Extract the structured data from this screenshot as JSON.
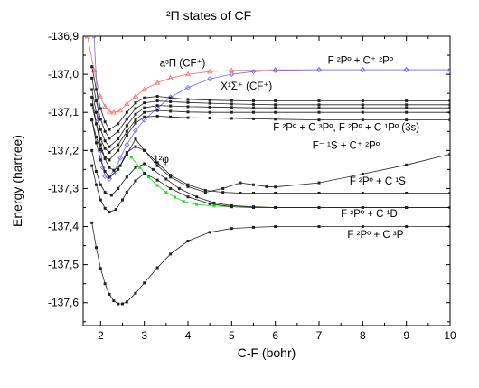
{
  "chart_data": {
    "type": "line",
    "title": "²Π states of CF",
    "xlabel": "C-F (bohr)",
    "ylabel": "Energy (hartree)",
    "xlim": [
      1.6,
      10
    ],
    "ylim": [
      -137.66,
      -136.9
    ],
    "x_ticks": [
      2,
      3,
      4,
      5,
      6,
      7,
      8,
      9,
      10
    ],
    "x_tick_labels": [
      "2",
      "3",
      "4",
      "5",
      "6",
      "7",
      "8",
      "9",
      "10"
    ],
    "y_ticks": [
      -136.9,
      -137.0,
      -137.1,
      -137.2,
      -137.3,
      -137.4,
      -137.5,
      -137.6
    ],
    "y_tick_labels": [
      "-136,9",
      "-137,0",
      "-137,1",
      "-137,2",
      "-137,3",
      "-137,4",
      "-137,5",
      "-137,6"
    ],
    "grid": false,
    "annotations": [
      {
        "text": "F ²Pº + C⁺ ²Pº",
        "x": 7.2,
        "y": -136.972
      },
      {
        "text": "a³Π (CF⁺)",
        "x": 3.35,
        "y": -136.98
      },
      {
        "text": "X¹Σ⁺ (CF⁺)",
        "x": 4.75,
        "y": -137.04
      },
      {
        "text": "F ²Pº + C ³Pº, F ²Pº + C ¹Pº (3s)",
        "x": 5.95,
        "y": -137.148
      },
      {
        "text": "F⁻ ¹S + C⁺ ²Pº",
        "x": 6.85,
        "y": -137.196
      },
      {
        "text": "1²φ",
        "x": 3.2,
        "y": -137.232
      },
      {
        "text": "F ²Pº + C ¹S",
        "x": 7.7,
        "y": -137.29
      },
      {
        "text": "F ²Pº + C ¹D",
        "x": 7.5,
        "y": -137.375
      },
      {
        "text": "F ²Pº + C ³P",
        "x": 7.65,
        "y": -137.43
      }
    ],
    "series": [
      {
        "color": "#ff6a6a",
        "marker": "triangle",
        "x": [
          1.7,
          1.85,
          2.0,
          2.1,
          2.2,
          2.3,
          2.45,
          2.6,
          2.8,
          3.0,
          3.3,
          3.6,
          4.0,
          4.5,
          5.0,
          6.0,
          7.0,
          8.0,
          9.0,
          10.0
        ],
        "y": [
          -136.9,
          -136.99,
          -137.06,
          -137.085,
          -137.098,
          -137.1,
          -137.095,
          -137.078,
          -137.058,
          -137.04,
          -137.022,
          -137.01,
          -137.0,
          -136.993,
          -136.99,
          -136.988,
          -136.988,
          -136.988,
          -136.988,
          -136.988
        ]
      },
      {
        "color": "#6a6aff",
        "marker": "diamond",
        "x": [
          1.85,
          1.95,
          2.0,
          2.05,
          2.1,
          2.2,
          2.3,
          2.45,
          2.6,
          2.8,
          3.0,
          3.3,
          3.6,
          4.0,
          4.5,
          5.0,
          5.5,
          6.0,
          7.0,
          8.0,
          9.0,
          10.0
        ],
        "y": [
          -136.9,
          -137.12,
          -137.2,
          -137.245,
          -137.268,
          -137.275,
          -137.26,
          -137.22,
          -137.185,
          -137.148,
          -137.12,
          -137.088,
          -137.06,
          -137.035,
          -137.012,
          -137.0,
          -136.993,
          -136.99,
          -136.988,
          -136.988,
          -136.988,
          -136.988
        ]
      },
      {
        "color": "#22dd22",
        "marker": "square",
        "x": [
          2.7,
          2.9,
          3.1,
          3.3,
          3.5,
          3.7,
          3.9,
          4.2,
          4.6,
          5.0,
          5.5,
          6.0,
          7.0,
          8.0,
          9.0,
          10.0
        ],
        "y": [
          -137.218,
          -137.245,
          -137.27,
          -137.292,
          -137.31,
          -137.323,
          -137.334,
          -137.342,
          -137.346,
          -137.348,
          -137.349,
          -137.35,
          -137.35,
          -137.35,
          -137.35,
          -137.35
        ]
      },
      {
        "color": "#222222",
        "marker": "square",
        "x": [
          1.8,
          1.9,
          2.0,
          2.1,
          2.2,
          2.3,
          2.4,
          2.5,
          2.6,
          2.8,
          3.0,
          3.3,
          3.6,
          4.0,
          4.5,
          5.0,
          5.5,
          6.0,
          7.0,
          8.0,
          9.0,
          10.0
        ],
        "y": [
          -137.39,
          -137.455,
          -137.51,
          -137.55,
          -137.578,
          -137.595,
          -137.603,
          -137.603,
          -137.598,
          -137.575,
          -137.548,
          -137.508,
          -137.472,
          -137.438,
          -137.415,
          -137.405,
          -137.402,
          -137.4,
          -137.4,
          -137.4,
          -137.4,
          -137.4
        ]
      },
      {
        "color": "#222222",
        "marker": "square",
        "x": [
          1.8,
          1.9,
          2.0,
          2.1,
          2.2,
          2.35,
          2.5,
          2.6,
          2.8,
          3.0,
          3.3,
          3.6,
          4.0,
          4.5,
          5.0,
          5.5,
          6.0,
          7.0,
          8.0,
          9.0,
          10.0
        ],
        "y": [
          -137.24,
          -137.29,
          -137.33,
          -137.352,
          -137.362,
          -137.355,
          -137.33,
          -137.31,
          -137.28,
          -137.26,
          -137.278,
          -137.3,
          -137.322,
          -137.34,
          -137.348,
          -137.35,
          -137.35,
          -137.35,
          -137.35,
          -137.35,
          -137.35
        ]
      },
      {
        "color": "#222222",
        "marker": "square",
        "x": [
          1.8,
          1.9,
          2.0,
          2.1,
          2.25,
          2.4,
          2.6,
          2.8,
          3.0,
          3.2,
          3.5,
          3.8,
          4.2,
          4.6,
          5.0,
          5.5,
          6.0,
          7.0,
          8.0,
          9.0,
          10.0
        ],
        "y": [
          -137.2,
          -137.255,
          -137.29,
          -137.31,
          -137.318,
          -137.3,
          -137.27,
          -137.245,
          -137.235,
          -137.25,
          -137.275,
          -137.3,
          -137.322,
          -137.338,
          -137.345,
          -137.348,
          -137.35,
          -137.35,
          -137.35,
          -137.35,
          -137.35
        ]
      },
      {
        "color": "#222222",
        "marker": "square",
        "x": [
          1.8,
          1.9,
          2.0,
          2.1,
          2.2,
          2.4,
          2.6,
          2.8,
          3.0,
          3.3,
          3.6,
          4.0,
          4.4,
          4.8,
          5.2,
          5.5,
          6.0,
          7.0,
          8.0,
          9.0,
          10.0
        ],
        "y": [
          -137.12,
          -137.18,
          -137.225,
          -137.255,
          -137.27,
          -137.25,
          -137.205,
          -137.19,
          -137.2,
          -137.232,
          -137.265,
          -137.29,
          -137.305,
          -137.31,
          -137.312,
          -137.312,
          -137.312,
          -137.312,
          -137.312,
          -137.312,
          -137.312
        ]
      },
      {
        "color": "#222222",
        "marker": "square",
        "x": [
          1.8,
          1.9,
          2.0,
          2.1,
          2.2,
          2.3,
          2.45,
          2.6,
          2.8,
          3.0,
          3.3,
          3.6,
          4.0,
          4.4,
          4.8,
          5.2,
          5.5,
          5.8,
          6.0,
          7.0,
          8.0,
          9.0,
          10.0
        ],
        "y": [
          -137.06,
          -137.13,
          -137.185,
          -137.222,
          -137.245,
          -137.252,
          -137.24,
          -137.21,
          -137.17,
          -137.2,
          -137.24,
          -137.27,
          -137.295,
          -137.31,
          -137.3,
          -137.285,
          -137.29,
          -137.295,
          -137.296,
          -137.285,
          -137.262,
          -137.238,
          -137.21
        ]
      },
      {
        "color": "#222222",
        "marker": "square",
        "x": [
          1.8,
          1.9,
          2.0,
          2.1,
          2.2,
          2.4,
          2.6,
          2.8,
          3.0,
          3.3,
          3.6,
          4.0,
          4.5,
          5.0,
          5.5,
          6.0,
          7.0,
          8.0,
          9.0,
          10.0
        ],
        "y": [
          -137.12,
          -137.165,
          -137.198,
          -137.218,
          -137.225,
          -137.2,
          -137.16,
          -137.128,
          -137.112,
          -137.11,
          -137.112,
          -137.114,
          -137.115,
          -137.116,
          -137.117,
          -137.118,
          -137.12,
          -137.12,
          -137.12,
          -137.12
        ]
      },
      {
        "color": "#222222",
        "marker": "square",
        "x": [
          1.8,
          1.9,
          2.0,
          2.1,
          2.2,
          2.4,
          2.6,
          2.8,
          3.0,
          3.3,
          3.6,
          4.0,
          4.5,
          5.0,
          5.5,
          6.0,
          7.0,
          8.0,
          9.0,
          10.0
        ],
        "y": [
          -137.08,
          -137.13,
          -137.17,
          -137.195,
          -137.205,
          -137.185,
          -137.15,
          -137.12,
          -137.1,
          -137.095,
          -137.097,
          -137.099,
          -137.1,
          -137.1,
          -137.1,
          -137.1,
          -137.1,
          -137.1,
          -137.1,
          -137.1
        ]
      },
      {
        "color": "#222222",
        "marker": "square",
        "x": [
          1.8,
          1.9,
          2.0,
          2.1,
          2.2,
          2.4,
          2.6,
          2.8,
          3.0,
          3.3,
          3.6,
          4.0,
          4.5,
          5.0,
          5.5,
          6.0,
          7.0,
          8.0,
          9.0,
          10.0
        ],
        "y": [
          -137.04,
          -137.1,
          -137.145,
          -137.175,
          -137.19,
          -137.17,
          -137.135,
          -137.105,
          -137.088,
          -137.082,
          -137.083,
          -137.085,
          -137.086,
          -137.087,
          -137.088,
          -137.088,
          -137.088,
          -137.088,
          -137.088,
          -137.088
        ]
      },
      {
        "color": "#222222",
        "marker": "square",
        "x": [
          1.8,
          1.9,
          2.0,
          2.1,
          2.2,
          2.4,
          2.6,
          2.8,
          3.0,
          3.3,
          3.6,
          4.0,
          4.5,
          5.0,
          5.5,
          6.0,
          7.0,
          8.0,
          9.0,
          10.0
        ],
        "y": [
          -137.01,
          -137.07,
          -137.118,
          -137.15,
          -137.168,
          -137.15,
          -137.118,
          -137.09,
          -137.075,
          -137.07,
          -137.072,
          -137.074,
          -137.076,
          -137.078,
          -137.079,
          -137.08,
          -137.08,
          -137.08,
          -137.08,
          -137.08
        ]
      },
      {
        "color": "#222222",
        "marker": "square",
        "x": [
          1.8,
          1.9,
          2.0,
          2.1,
          2.2,
          2.4,
          2.6,
          2.8,
          3.0,
          3.3,
          3.6,
          4.0,
          4.5,
          5.0,
          5.5,
          6.0,
          7.0,
          8.0,
          9.0,
          10.0
        ],
        "y": [
          -136.98,
          -137.04,
          -137.09,
          -137.125,
          -137.145,
          -137.13,
          -137.1,
          -137.075,
          -137.062,
          -137.058,
          -137.062,
          -137.066,
          -137.068,
          -137.069,
          -137.07,
          -137.07,
          -137.07,
          -137.07,
          -137.07,
          -137.07
        ]
      }
    ]
  }
}
